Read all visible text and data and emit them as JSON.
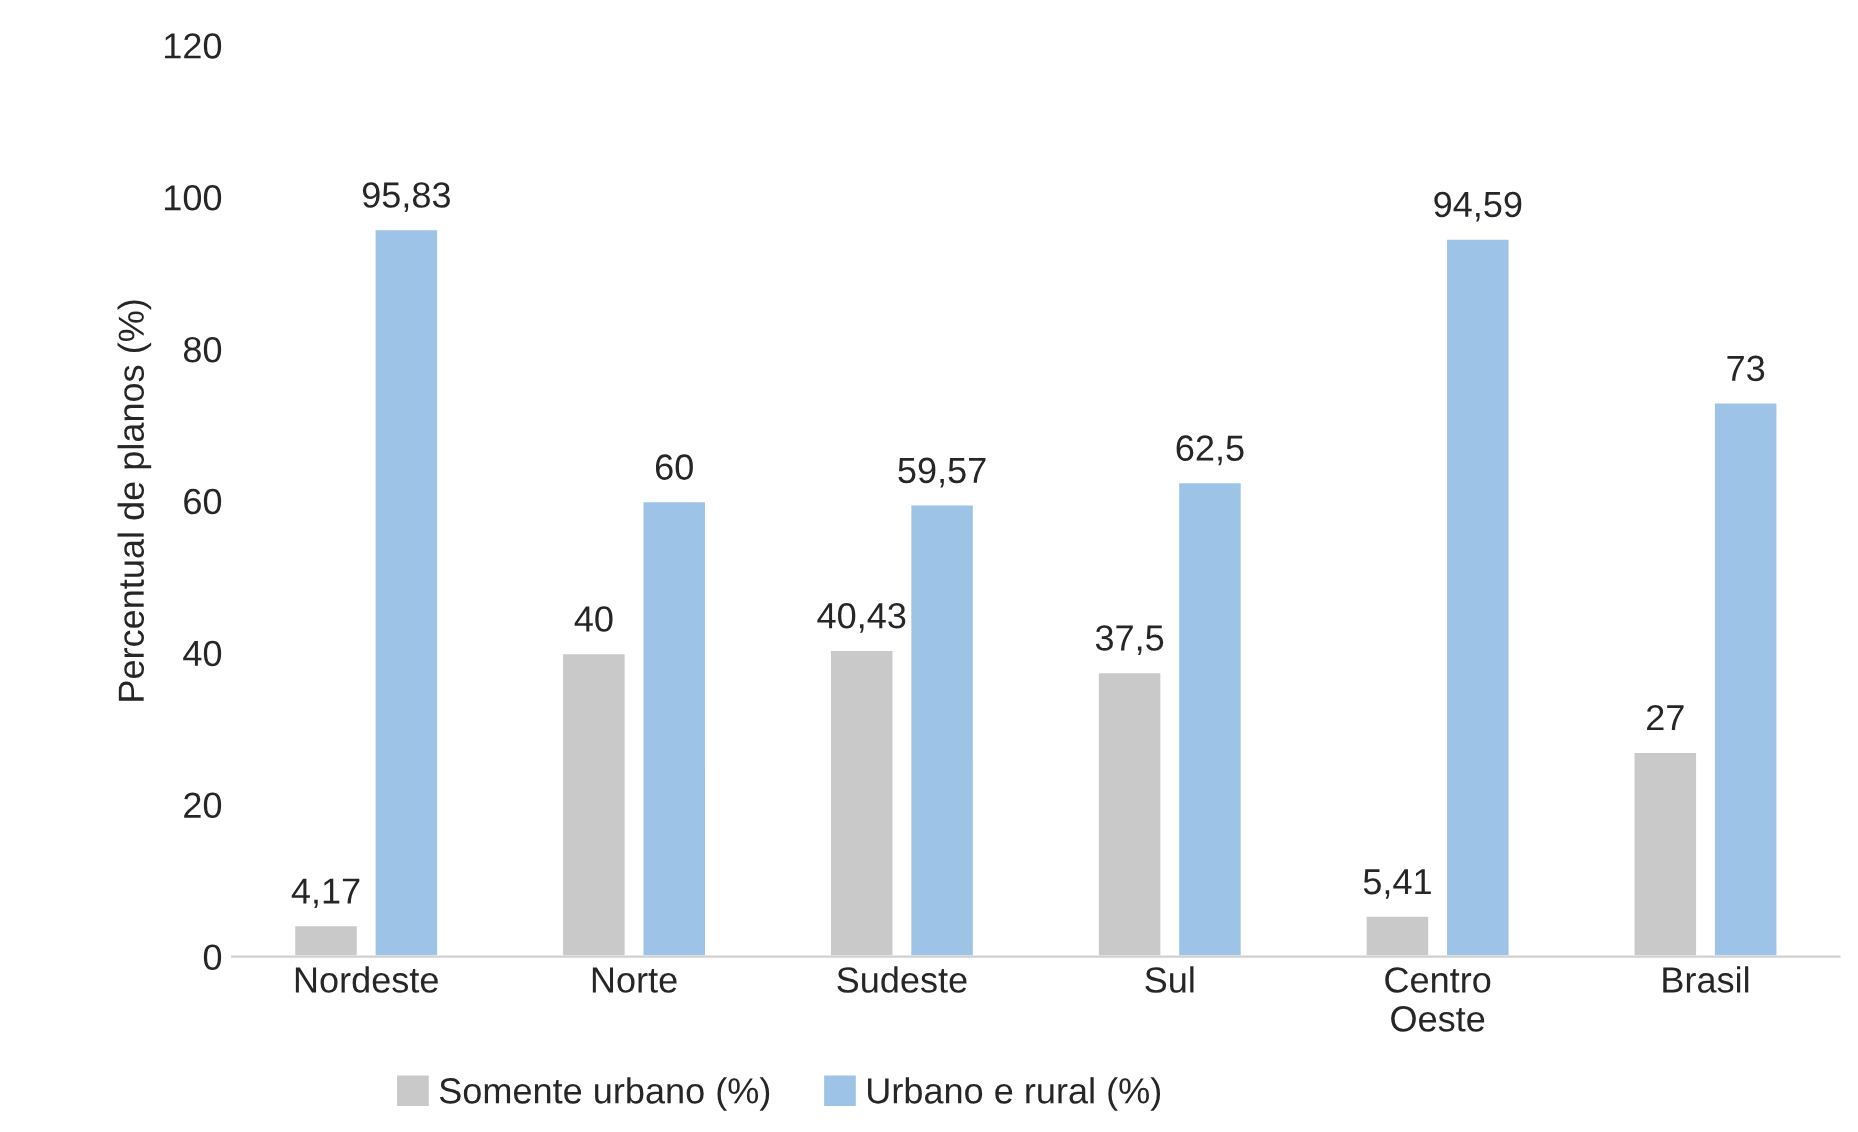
{
  "chart_data": {
    "type": "bar",
    "ylabel": "Percentual de planos (%)",
    "categories": [
      "Nordeste",
      "Norte",
      "Sudeste",
      "Sul",
      "Centro\nOeste",
      "Brasil"
    ],
    "series": [
      {
        "name": "Somente urbano (%)",
        "color": "#c9c9c9",
        "values": [
          4.17,
          40,
          40.43,
          37.5,
          5.41,
          27
        ],
        "value_labels": [
          "4,17",
          "40",
          "40,43",
          "37,5",
          "5,41",
          "27"
        ]
      },
      {
        "name": "Urbano e rural (%)",
        "color": "#9dc3e6",
        "values": [
          95.83,
          60,
          59.57,
          62.5,
          94.59,
          73
        ],
        "value_labels": [
          "95,83",
          "60",
          "59,57",
          "62,5",
          "94,59",
          "73"
        ]
      }
    ],
    "ylim": [
      0,
      120
    ],
    "yticks": [
      0,
      20,
      40,
      60,
      80,
      100,
      120
    ],
    "grid": false,
    "legend": "bottom"
  }
}
